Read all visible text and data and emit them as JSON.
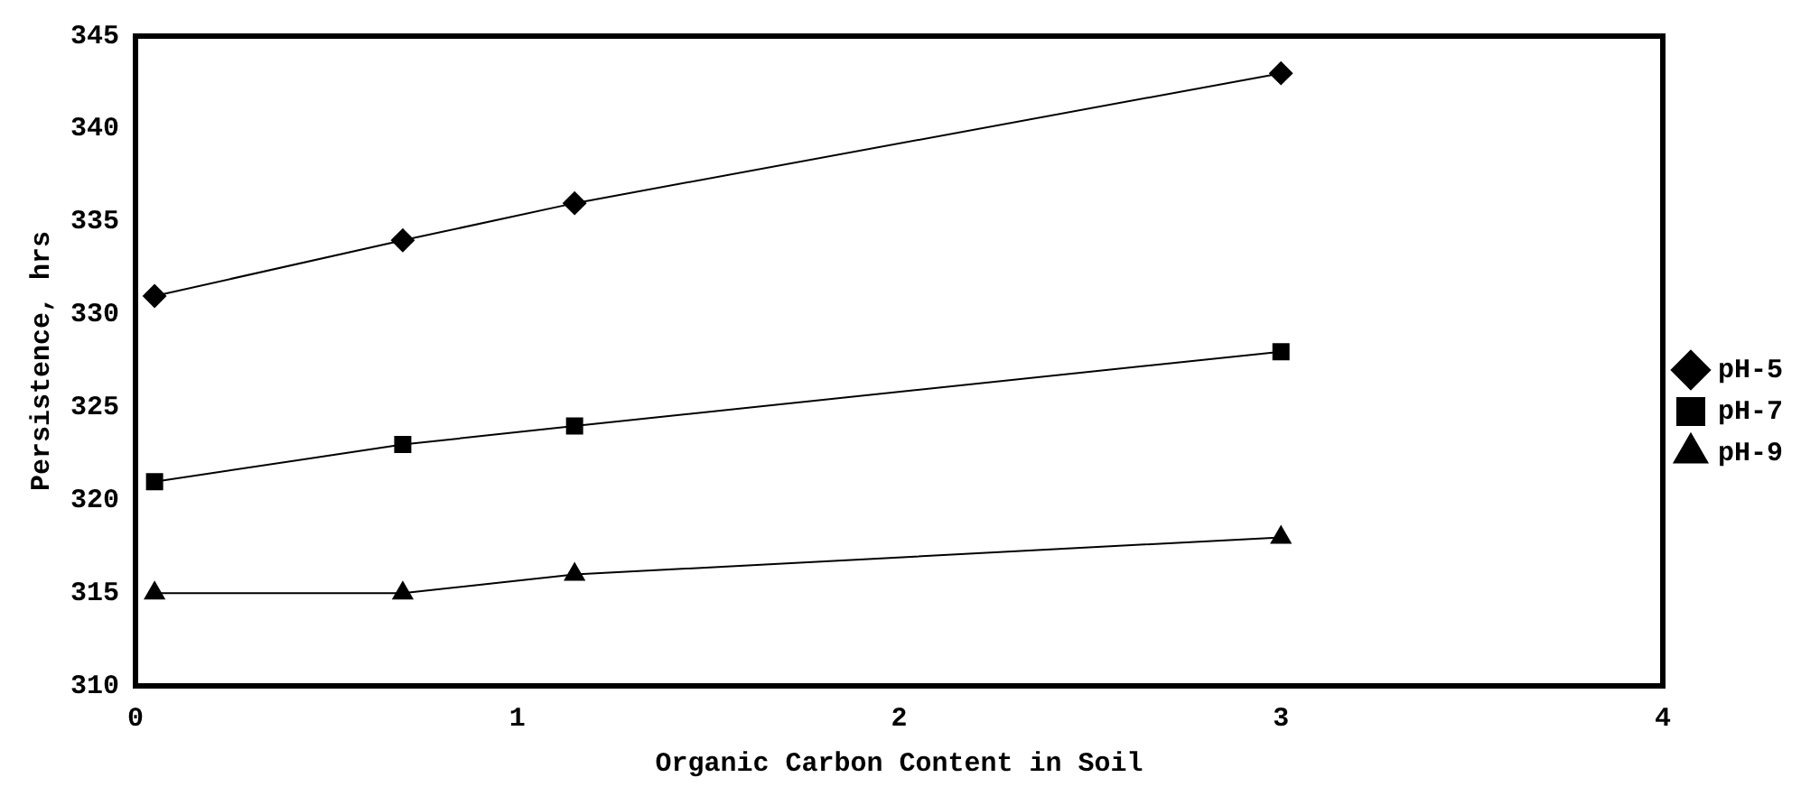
{
  "chart_data": {
    "type": "line",
    "xlabel": "Organic Carbon Content in Soil",
    "ylabel": "Persistence, hrs",
    "x": [
      0.05,
      0.7,
      1.15,
      3
    ],
    "series": [
      {
        "name": "pH-5",
        "color": "#000000",
        "marker": "diamond",
        "values": [
          331,
          334,
          336,
          343
        ]
      },
      {
        "name": "pH-7",
        "color": "#000000",
        "marker": "square",
        "values": [
          321,
          323,
          324,
          328
        ]
      },
      {
        "name": "pH-9",
        "color": "#000000",
        "marker": "triangle",
        "values": [
          315,
          315,
          316,
          318
        ]
      }
    ],
    "xlim": [
      0,
      4
    ],
    "xticks": [
      0,
      1,
      2,
      3,
      4
    ],
    "ylim": [
      310,
      345
    ],
    "yticks": [
      310,
      315,
      320,
      325,
      330,
      335,
      340,
      345
    ],
    "grid": false,
    "legend": "right",
    "line_style": "solid"
  }
}
